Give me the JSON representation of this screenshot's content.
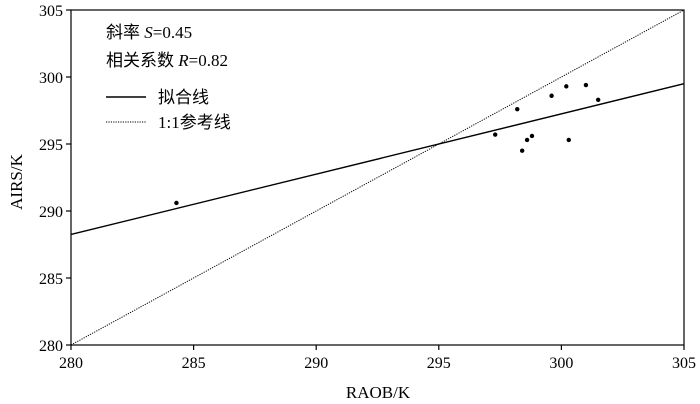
{
  "chart_data": {
    "type": "scatter",
    "xlabel": "RAOB/K",
    "ylabel": "AIRS/K",
    "xlim": [
      280,
      305
    ],
    "ylim": [
      280,
      305
    ],
    "xticks": [
      "280",
      "285",
      "290",
      "295",
      "300",
      "305"
    ],
    "yticks": [
      "280",
      "285",
      "290",
      "295",
      "300",
      "305"
    ],
    "grid": false,
    "points": [
      {
        "x": 284.3,
        "y": 290.6
      },
      {
        "x": 297.3,
        "y": 295.7
      },
      {
        "x": 298.2,
        "y": 297.6
      },
      {
        "x": 298.4,
        "y": 294.5
      },
      {
        "x": 298.6,
        "y": 295.3
      },
      {
        "x": 298.8,
        "y": 295.6
      },
      {
        "x": 299.6,
        "y": 298.6
      },
      {
        "x": 300.2,
        "y": 299.3
      },
      {
        "x": 300.3,
        "y": 295.3
      },
      {
        "x": 301.0,
        "y": 299.4
      },
      {
        "x": 301.5,
        "y": 298.3
      }
    ],
    "fit_line": {
      "slope": 0.45,
      "intercept": 162.25
    },
    "reference_line": {
      "slope": 1,
      "intercept": 0
    },
    "annotations": {
      "slope": {
        "prefix": "斜率 ",
        "symbol": "S",
        "value": "=0.45"
      },
      "correlation": {
        "prefix": "相关系数 ",
        "symbol": "R",
        "value": "=0.82"
      }
    },
    "legend": {
      "placement": "top-left",
      "fit_label": "拟合线",
      "reference_label": "1:1参考线"
    }
  }
}
